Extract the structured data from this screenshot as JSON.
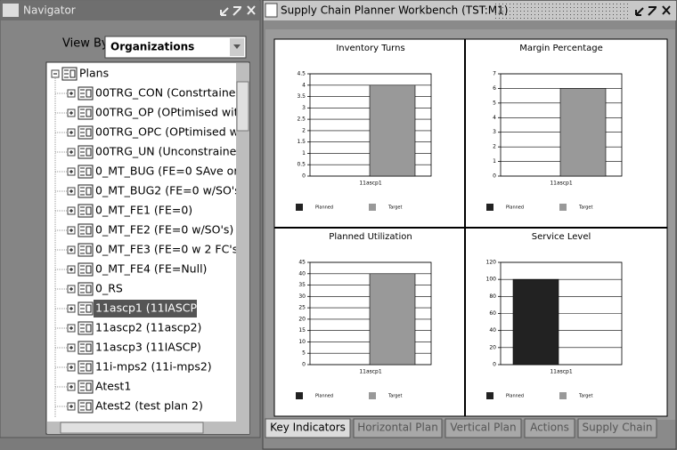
{
  "navigator": {
    "title": "Navigator",
    "view_by_label": "View By",
    "view_by_value": "Organizations",
    "tree": {
      "root": "Plans",
      "items": [
        {
          "label": "00TRG_CON (Constrtained"
        },
        {
          "label": "00TRG_OP (OPtimised with"
        },
        {
          "label": "00TRG_OPC (OPtimised w"
        },
        {
          "label": "00TRG_UN (Unconstrained"
        },
        {
          "label": "0_MT_BUG (FE=0  SAve or"
        },
        {
          "label": "0_MT_BUG2 (FE=0 w/SO's"
        },
        {
          "label": "0_MT_FE1 (FE=0)"
        },
        {
          "label": "0_MT_FE2 (FE=0 w/SO's)"
        },
        {
          "label": "0_MT_FE3 (FE=0 w 2 FC's)"
        },
        {
          "label": "0_MT_FE4 (FE=Null)"
        },
        {
          "label": "0_RS"
        },
        {
          "label": "11ascp1 (11IASCP)",
          "selected": true
        },
        {
          "label": "11ascp2 (11ascp2)"
        },
        {
          "label": "11ascp3 (11IASCP)"
        },
        {
          "label": "11i-mps2 (11i-mps2)"
        },
        {
          "label": "Atest1"
        },
        {
          "label": "Atest2 (test plan 2)"
        }
      ]
    }
  },
  "workbench": {
    "title": "Supply Chain Planner Workbench (TST:M1)",
    "tabs": [
      {
        "label": "Key Indicators",
        "active": true
      },
      {
        "label": "Horizontal Plan"
      },
      {
        "label": "Vertical Plan"
      },
      {
        "label": "Actions"
      },
      {
        "label": "Supply Chain"
      }
    ]
  },
  "chart_data": [
    {
      "type": "bar",
      "title": "Inventory Turns",
      "categories": [
        "11ascp1"
      ],
      "series": [
        {
          "name": "Planned",
          "color": "#222222",
          "values": [
            null
          ]
        },
        {
          "name": "Target",
          "color": "#999999",
          "values": [
            4
          ]
        }
      ],
      "ylim": [
        0,
        4.5
      ],
      "yticks": [
        0,
        0.5,
        1,
        1.5,
        2,
        2.5,
        3,
        3.5,
        4,
        4.5
      ],
      "grid": true
    },
    {
      "type": "bar",
      "title": "Margin Percentage",
      "categories": [
        "11ascp1"
      ],
      "series": [
        {
          "name": "Planned",
          "color": "#222222",
          "values": [
            null
          ]
        },
        {
          "name": "Target",
          "color": "#999999",
          "values": [
            6
          ]
        }
      ],
      "ylim": [
        0,
        7
      ],
      "yticks": [
        0,
        1,
        2,
        3,
        4,
        5,
        6,
        7
      ],
      "grid": true
    },
    {
      "type": "bar",
      "title": "Planned Utilization",
      "categories": [
        "11ascp1"
      ],
      "series": [
        {
          "name": "Planned",
          "color": "#222222",
          "values": [
            null
          ]
        },
        {
          "name": "Target",
          "color": "#999999",
          "values": [
            40
          ]
        }
      ],
      "ylim": [
        0,
        45
      ],
      "yticks": [
        0,
        5,
        10,
        15,
        20,
        25,
        30,
        35,
        40,
        45
      ],
      "grid": true
    },
    {
      "type": "bar",
      "title": "Service Level",
      "categories": [
        "11ascp1"
      ],
      "series": [
        {
          "name": "Planned",
          "color": "#222222",
          "values": [
            100
          ]
        },
        {
          "name": "Target",
          "color": "#999999",
          "values": [
            null
          ]
        }
      ],
      "ylim": [
        0,
        120
      ],
      "yticks": [
        0,
        20,
        40,
        60,
        80,
        100,
        120
      ],
      "grid": true
    }
  ]
}
